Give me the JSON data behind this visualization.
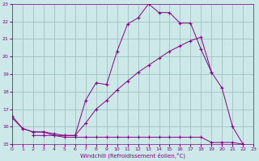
{
  "xlabel": "Windchill (Refroidissement éolien,°C)",
  "bg_color": "#cce8e8",
  "grid_color": "#99bbbb",
  "line_color": "#880088",
  "xlim": [
    0,
    23
  ],
  "ylim": [
    15,
    23
  ],
  "xticks": [
    0,
    1,
    2,
    3,
    4,
    5,
    6,
    7,
    8,
    9,
    10,
    11,
    12,
    13,
    14,
    15,
    16,
    17,
    18,
    19,
    20,
    21,
    22,
    23
  ],
  "yticks": [
    15,
    16,
    17,
    18,
    19,
    20,
    21,
    22,
    23
  ],
  "curve1_x": [
    0,
    1,
    2,
    3,
    4,
    5,
    6,
    7,
    8,
    9,
    10,
    11,
    12,
    13,
    14,
    15,
    16,
    17,
    18,
    19,
    20,
    21,
    22
  ],
  "curve1_y": [
    16.6,
    15.9,
    15.7,
    15.7,
    15.5,
    15.5,
    15.5,
    17.5,
    18.5,
    18.4,
    20.3,
    21.85,
    22.2,
    23.0,
    22.5,
    22.5,
    21.9,
    21.9,
    20.4,
    19.1,
    18.2,
    16.0,
    15.0
  ],
  "curve2_x": [
    0,
    1,
    2,
    3,
    4,
    5,
    6,
    7,
    8,
    9,
    10,
    11,
    12,
    13,
    14,
    15,
    16,
    17,
    18,
    19,
    20,
    21,
    22
  ],
  "curve2_y": [
    16.5,
    15.9,
    15.7,
    15.7,
    15.6,
    15.5,
    15.5,
    16.2,
    17.0,
    17.5,
    18.1,
    18.6,
    19.1,
    19.5,
    19.9,
    20.3,
    20.6,
    20.9,
    21.1,
    19.1,
    null,
    null,
    null
  ],
  "curve3_x": [
    2,
    3,
    4,
    5,
    6,
    7,
    8,
    9,
    10,
    11,
    12,
    13,
    14,
    15,
    16,
    17,
    18,
    19,
    20,
    21,
    22
  ],
  "curve3_y": [
    15.5,
    15.5,
    15.5,
    15.4,
    15.4,
    15.4,
    15.4,
    15.4,
    15.4,
    15.4,
    15.4,
    15.4,
    15.4,
    15.4,
    15.4,
    15.4,
    15.4,
    15.1,
    15.1,
    15.1,
    15.0
  ]
}
